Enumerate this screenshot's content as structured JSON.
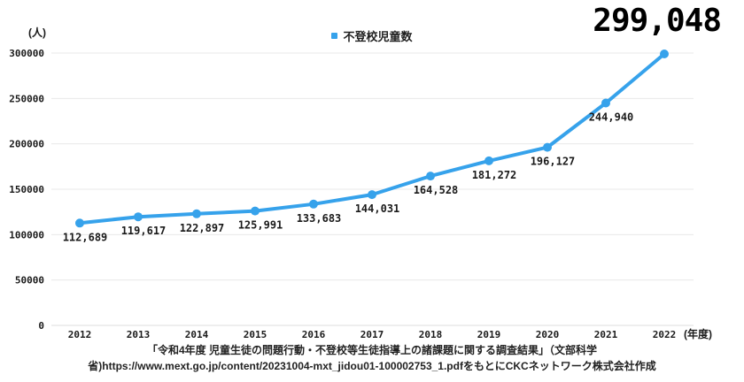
{
  "chart_data": {
    "type": "line",
    "legend": "不登校児童数",
    "unit_y": "(人)",
    "unit_x": "(年度)",
    "categories": [
      "2012",
      "2013",
      "2014",
      "2015",
      "2016",
      "2017",
      "2018",
      "2019",
      "2020",
      "2021",
      "2022"
    ],
    "values": [
      112689,
      119617,
      122897,
      125991,
      133683,
      144031,
      164528,
      181272,
      196127,
      244940,
      299048
    ],
    "point_labels": [
      "112,689",
      "119,617",
      "122,897",
      "125,991",
      "133,683",
      "144,031",
      "164,528",
      "181,272",
      "196,127",
      "244,940",
      ""
    ],
    "highlight_value": "299,048",
    "ylim": [
      0,
      300000
    ],
    "ytick_step": 50000,
    "yticks": [
      "0",
      "50000",
      "100000",
      "150000",
      "200000",
      "250000",
      "300000"
    ],
    "line_color": "#36A2EB",
    "grid_color": "#E8E8E8",
    "baseline_color": "#DCDCDC",
    "legend_position": "top-center",
    "grid": "horizontal-only"
  },
  "caption": {
    "line1": "「令和4年度 児童生徒の問題行動・不登校等生徒指導上の諸課題に関する調査結果」（文部科学",
    "line2": "省)https://www.mext.go.jp/content/20231004-mxt_jidou01-100002753_1.pdfをもとにCKCネットワーク株式会社作成"
  }
}
